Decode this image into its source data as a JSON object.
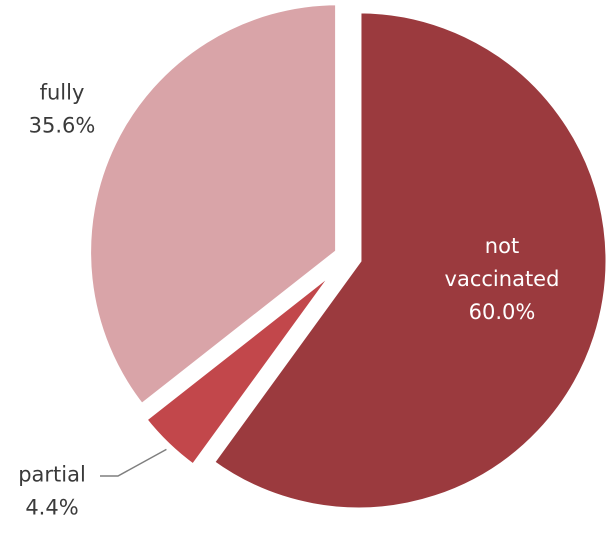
{
  "chart_data": {
    "type": "pie",
    "start_angle_deg": 0,
    "direction": "clockwise",
    "slices": [
      {
        "name": "not vaccinated",
        "label_lines": [
          "not",
          "vaccinated"
        ],
        "pct_label": "60.0%",
        "value": 60.0,
        "color": "#9b3a3e"
      },
      {
        "name": "partial",
        "label_lines": [
          "partial"
        ],
        "pct_label": "4.4%",
        "value": 4.4,
        "color": "#c2474b"
      },
      {
        "name": "fully",
        "label_lines": [
          "fully"
        ],
        "pct_label": "35.6%",
        "value": 35.6,
        "color": "#d9a4a8"
      }
    ]
  }
}
